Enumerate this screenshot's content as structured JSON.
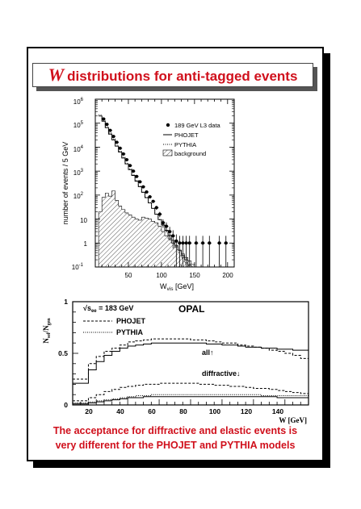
{
  "title": {
    "symbol": "W",
    "text": "distributions for anti-tagged events"
  },
  "caption": {
    "line1": "The acceptance for diffractive and elastic events is",
    "line2": "very different for the PHOJET and PYTHIA models"
  },
  "colors": {
    "title": "#d0101c",
    "frame": "#000000"
  },
  "chart_data": [
    {
      "type": "line",
      "ylabel": "number of events / 5 GeV",
      "xlabel": "W",
      "xlabel_sub": "vis",
      "xlabel_unit": "[GeV]",
      "yscale": "log",
      "xlim": [
        0,
        210
      ],
      "ylim": [
        0.1,
        1000000
      ],
      "xticks": [
        "50",
        "100",
        "150",
        "200"
      ],
      "yticks": [
        {
          "base": "10",
          "exp": "-1"
        },
        {
          "base": "1",
          "exp": ""
        },
        {
          "base": "10",
          "exp": ""
        },
        {
          "base": "10",
          "exp": "2"
        },
        {
          "base": "10",
          "exp": "3"
        },
        {
          "base": "10",
          "exp": "4"
        },
        {
          "base": "10",
          "exp": "5"
        },
        {
          "base": "10",
          "exp": "6"
        }
      ],
      "legend_position": "top-right",
      "legend": [
        "189 GeV L3 data",
        "PHOJET",
        "PYTHIA",
        "background"
      ],
      "x_edges": [
        5,
        10,
        15,
        20,
        25,
        30,
        35,
        40,
        45,
        50,
        55,
        60,
        65,
        70,
        75,
        80,
        85,
        90,
        95,
        100,
        105,
        110,
        115,
        120,
        125,
        130,
        135,
        140,
        145,
        150
      ],
      "series": [
        {
          "name": "189 GeV L3 data",
          "style": "points",
          "x": [
            12.5,
            17.5,
            22.5,
            27.5,
            32.5,
            37.5,
            42.5,
            47.5,
            52.5,
            57.5,
            62.5,
            67.5,
            72.5,
            77.5,
            82.5,
            87.5,
            92.5,
            97.5,
            102.5,
            107.5,
            112.5,
            117.5,
            122.5,
            127.5,
            132.5,
            137.5,
            142.5,
            152.5,
            162.5,
            172.5,
            187.5,
            197.5
          ],
          "values": [
            150000,
            90000,
            50000,
            28000,
            16000,
            9000,
            5200,
            3000,
            1700,
            1000,
            600,
            360,
            220,
            135,
            85,
            55,
            30,
            16,
            7,
            5,
            3,
            2,
            1.2,
            1,
            1,
            1,
            1,
            1,
            1,
            1,
            1,
            1
          ]
        },
        {
          "name": "PHOJET",
          "style": "solid",
          "values": [
            200000,
            120000,
            65000,
            35000,
            20000,
            11000,
            6200,
            3500,
            2000,
            1150,
            660,
            380,
            225,
            130,
            78,
            47,
            28,
            16,
            9.5,
            5.7,
            3.4,
            2.1,
            1.3,
            0.8,
            0.5,
            0.3,
            0.2,
            0.12,
            0.1
          ]
        },
        {
          "name": "PYTHIA",
          "style": "dotted",
          "values": [
            220000,
            130000,
            72000,
            39000,
            22000,
            12000,
            6800,
            3800,
            2150,
            1230,
            700,
            400,
            235,
            135,
            80,
            48,
            28,
            16,
            9.3,
            5.5,
            3.2,
            1.9,
            1.1,
            0.65,
            0.4,
            0.24,
            0.15,
            0.1,
            0.1
          ]
        },
        {
          "name": "background",
          "style": "hatched",
          "values": [
            20,
            80,
            120,
            90,
            150,
            60,
            35,
            25,
            18,
            15,
            12,
            10,
            9,
            12,
            11,
            10,
            8,
            7,
            5,
            3,
            2,
            1.5,
            1,
            0.7,
            0.5,
            0.35,
            0.25,
            0.18,
            0.13
          ]
        }
      ]
    },
    {
      "type": "line",
      "ylabel": "N",
      "ylabel_sub1": "sel",
      "ylabel_slash": "/N",
      "ylabel_sub2": "gen",
      "xlabel": "W [GeV]",
      "xlim": [
        5,
        155
      ],
      "ylim": [
        0,
        1
      ],
      "xticks": [
        "20",
        "40",
        "60",
        "80",
        "100",
        "120",
        "140"
      ],
      "yticks": [
        "0",
        "0.5",
        "1"
      ],
      "labels": {
        "sqrt": "√s",
        "sqrt_sub": "ee",
        "energy": " = 183 GeV",
        "experiment": "OPAL",
        "all": "all↑",
        "diffractive": "diffractive↓"
      },
      "legend": [
        "PHOJET",
        "PYTHIA"
      ],
      "x_edges": [
        5,
        10,
        15,
        20,
        25,
        30,
        35,
        40,
        45,
        50,
        55,
        60,
        65,
        70,
        75,
        80,
        85,
        90,
        95,
        100,
        105,
        110,
        115,
        120,
        125,
        130,
        135,
        140,
        145,
        150,
        155
      ],
      "series": [
        {
          "name": "PHOJET",
          "group": "all",
          "style": "dashed",
          "values": [
            0.25,
            0.25,
            0.4,
            0.47,
            0.52,
            0.55,
            0.58,
            0.61,
            0.62,
            0.63,
            0.64,
            0.64,
            0.64,
            0.64,
            0.64,
            0.63,
            0.63,
            0.62,
            0.61,
            0.6,
            0.6,
            0.58,
            0.57,
            0.56,
            0.55,
            0.53,
            0.52,
            0.5,
            0.48,
            0.45
          ]
        },
        {
          "name": "PYTHIA",
          "group": "all",
          "style": "solid",
          "values": [
            0.21,
            0.21,
            0.34,
            0.42,
            0.48,
            0.52,
            0.55,
            0.57,
            0.58,
            0.59,
            0.6,
            0.6,
            0.6,
            0.6,
            0.6,
            0.6,
            0.6,
            0.59,
            0.59,
            0.58,
            0.58,
            0.57,
            0.56,
            0.56,
            0.55,
            0.55,
            0.54,
            0.54,
            0.53,
            0.53
          ]
        },
        {
          "name": "PHOJET",
          "group": "diffractive",
          "style": "dashed",
          "values": [
            0.04,
            0.04,
            0.07,
            0.1,
            0.13,
            0.15,
            0.17,
            0.18,
            0.19,
            0.2,
            0.2,
            0.21,
            0.21,
            0.21,
            0.21,
            0.21,
            0.2,
            0.2,
            0.19,
            0.19,
            0.18,
            0.18,
            0.17,
            0.16,
            0.16,
            0.15,
            0.14,
            0.13,
            0.12,
            0.11
          ]
        },
        {
          "name": "PYTHIA",
          "group": "diffractive",
          "style": "solid",
          "values": [
            0.01,
            0.01,
            0.02,
            0.03,
            0.04,
            0.05,
            0.06,
            0.07,
            0.07,
            0.08,
            0.08,
            0.08,
            0.08,
            0.08,
            0.08,
            0.08,
            0.08,
            0.08,
            0.08,
            0.08,
            0.08,
            0.08,
            0.08,
            0.08,
            0.08,
            0.08,
            0.07,
            0.07,
            0.07,
            0.07
          ]
        },
        {
          "name": "PYTHIA",
          "group": "diffractive-dotted",
          "style": "dotted",
          "values": [
            0.02,
            0.02,
            0.03,
            0.04,
            0.05,
            0.06,
            0.07,
            0.08,
            0.09,
            0.09,
            0.1,
            0.1,
            0.1,
            0.1,
            0.1,
            0.1,
            0.1,
            0.1,
            0.1,
            0.1,
            0.1,
            0.1,
            0.1,
            0.1,
            0.09,
            0.09,
            0.09,
            0.09,
            0.09,
            0.09
          ]
        }
      ]
    }
  ]
}
